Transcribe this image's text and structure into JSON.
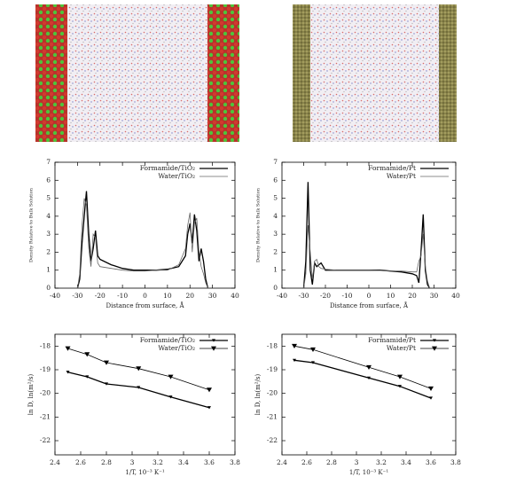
{
  "chart_data": [
    {
      "type": "line",
      "ylabel": "Density Relative to Bulk Solution",
      "xlabel": "Distance from surface, Å",
      "x": [
        -30,
        -29,
        -28,
        -27,
        -26,
        -25,
        -24,
        -23,
        -22,
        -21,
        -20,
        -15,
        -10,
        -5,
        0,
        5,
        10,
        15,
        18,
        19,
        20,
        21,
        22,
        23,
        24,
        25,
        26,
        27,
        28
      ],
      "series": [
        {
          "name": "Formamide/TiO₂",
          "color": "#000000",
          "values": [
            0,
            0.5,
            2.5,
            4,
            5.4,
            3,
            1.5,
            2.2,
            3.2,
            1.8,
            1.6,
            1.3,
            1.1,
            1,
            1,
            1,
            1.05,
            1.2,
            1.8,
            3,
            3.6,
            2.5,
            4.1,
            3.2,
            1.5,
            2.2,
            1.5,
            0.5,
            0
          ]
        },
        {
          "name": "Water/TiO₂",
          "color": "#666666",
          "values": [
            0,
            0.8,
            3.5,
            5,
            4.6,
            2.2,
            1.2,
            3.0,
            2.8,
            1.4,
            1.2,
            1.1,
            1,
            0.95,
            0.95,
            1,
            1,
            1.3,
            2.2,
            3.5,
            4.2,
            2,
            3.6,
            3.9,
            2,
            1.2,
            0.8,
            0.3,
            0
          ]
        }
      ],
      "xlim": [
        -40,
        40
      ],
      "xticks": [
        -40,
        -30,
        -20,
        -10,
        0,
        10,
        20,
        30,
        40
      ],
      "ylim": [
        0,
        7
      ],
      "yticks": [
        0,
        1,
        2,
        3,
        4,
        5,
        6,
        7
      ],
      "legend": "upper right"
    },
    {
      "type": "line",
      "ylabel": "Density Relative to Bulk Solution",
      "xlabel": "Distance from surface, Å",
      "x": [
        -30,
        -29,
        -28,
        -27,
        -26,
        -25,
        -24,
        -23,
        -22,
        -20,
        -15,
        -10,
        -5,
        0,
        5,
        10,
        15,
        20,
        22,
        23,
        24,
        25,
        26,
        27,
        28
      ],
      "series": [
        {
          "name": "Formamide/Pt",
          "color": "#000000",
          "values": [
            0,
            1.5,
            5.9,
            1,
            0.2,
            1.4,
            1.2,
            1.3,
            1.4,
            1,
            1,
            1,
            1,
            1,
            1,
            0.95,
            0.9,
            0.8,
            0.7,
            0.3,
            2,
            4.1,
            1,
            0.2,
            0
          ]
        },
        {
          "name": "Water/Pt",
          "color": "#666666",
          "values": [
            0,
            0.8,
            3.5,
            2,
            0.5,
            1.5,
            1.6,
            1.2,
            1.1,
            1.05,
            1,
            1,
            1,
            1,
            0.98,
            0.95,
            0.95,
            0.9,
            0.9,
            1.5,
            1.8,
            3.0,
            1.2,
            0.4,
            0
          ]
        }
      ],
      "xlim": [
        -40,
        40
      ],
      "xticks": [
        -40,
        -30,
        -20,
        -10,
        0,
        10,
        20,
        30,
        40
      ],
      "ylim": [
        0,
        7
      ],
      "yticks": [
        0,
        1,
        2,
        3,
        4,
        5,
        6,
        7
      ],
      "legend": "upper right"
    },
    {
      "type": "line",
      "ylabel": "ln D, ln(m²/s)",
      "xlabel": "1/T, 10⁻³ K⁻¹",
      "x": [
        2.5,
        2.65,
        2.8,
        3.05,
        3.3,
        3.6
      ],
      "series": [
        {
          "name": "Formamide/TiO₂",
          "color": "#000000",
          "marker": "small-triangle",
          "values": [
            -19.1,
            -19.3,
            -19.6,
            -19.75,
            -20.15,
            -20.6
          ]
        },
        {
          "name": "Water/TiO₂",
          "color": "#000000",
          "marker": "triangle",
          "values": [
            -18.1,
            -18.35,
            -18.7,
            -18.95,
            -19.3,
            -19.85
          ]
        }
      ],
      "xlim": [
        2.4,
        3.8
      ],
      "xticks": [
        2.4,
        2.6,
        2.8,
        3,
        3.2,
        3.4,
        3.6,
        3.8
      ],
      "ylim": [
        -22.6,
        -17.5
      ],
      "yticks": [
        -18,
        -19,
        -20,
        -21,
        -22
      ],
      "legend": "upper right"
    },
    {
      "type": "line",
      "ylabel": "ln D, ln(m²/s)",
      "xlabel": "1/T, 10⁻³ K⁻¹",
      "x": [
        2.5,
        2.65,
        3.1,
        3.35,
        3.6
      ],
      "series": [
        {
          "name": "Formamide/Pt",
          "color": "#000000",
          "marker": "small-triangle",
          "values": [
            -18.6,
            -18.7,
            -19.35,
            -19.7,
            -20.2
          ]
        },
        {
          "name": "Water/Pt",
          "color": "#000000",
          "marker": "triangle",
          "values": [
            -18.0,
            -18.15,
            -18.9,
            -19.3,
            -19.8
          ]
        }
      ],
      "xlim": [
        2.4,
        3.8
      ],
      "xticks": [
        2.4,
        2.6,
        2.8,
        3,
        3.2,
        3.4,
        3.6,
        3.8
      ],
      "ylim": [
        -22.6,
        -17.5
      ],
      "yticks": [
        -18,
        -19,
        -20,
        -21,
        -22
      ],
      "legend": "upper right"
    }
  ]
}
